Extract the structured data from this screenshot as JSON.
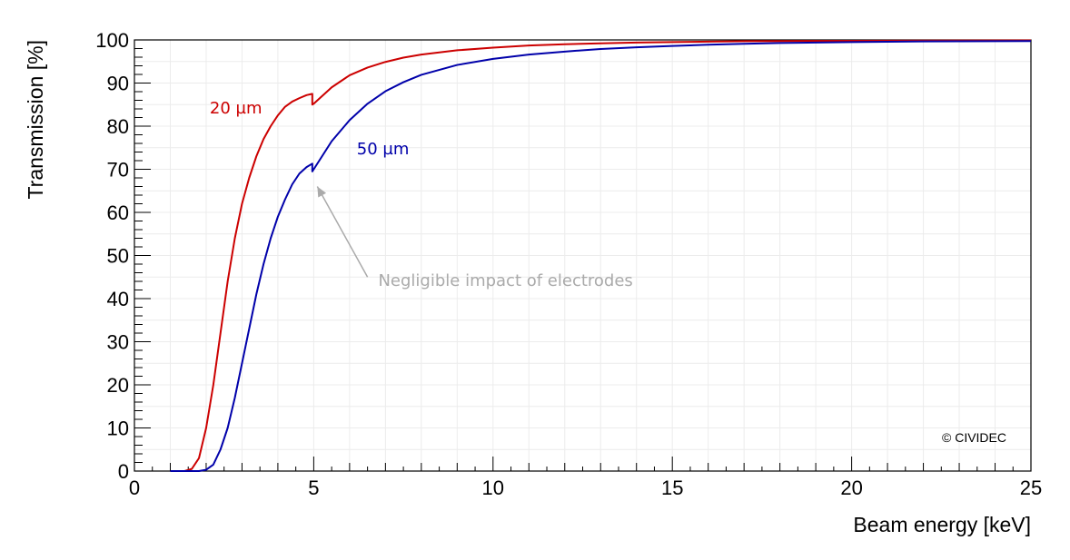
{
  "chart_data": {
    "type": "line",
    "xlabel": "Beam energy [keV]",
    "ylabel": "Transmission [%]",
    "xlim": [
      0,
      25
    ],
    "ylim": [
      0,
      100
    ],
    "x_ticks": [
      "0",
      "5",
      "10",
      "15",
      "20",
      "25"
    ],
    "y_ticks": [
      "0",
      "10",
      "20",
      "30",
      "40",
      "50",
      "60",
      "70",
      "80",
      "90",
      "100"
    ],
    "grid": true,
    "log_x": false,
    "log_y": false,
    "series": [
      {
        "name": "20 µm",
        "color": "#cc0000",
        "x": [
          1.0,
          1.2,
          1.4,
          1.6,
          1.8,
          2.0,
          2.2,
          2.4,
          2.6,
          2.8,
          3.0,
          3.2,
          3.4,
          3.6,
          3.8,
          4.0,
          4.2,
          4.4,
          4.6,
          4.8,
          4.96,
          4.96,
          5.0,
          5.5,
          6.0,
          6.5,
          7.0,
          7.5,
          8.0,
          9.0,
          10.0,
          11.0,
          12.0,
          13.0,
          14.0,
          15.0,
          16.0,
          17.0,
          18.0,
          20.0,
          22.0,
          25.0
        ],
        "y": [
          0,
          0,
          0,
          0.5,
          3,
          10,
          20,
          32,
          44,
          54,
          62,
          68,
          73,
          77,
          80,
          82.5,
          84.5,
          85.7,
          86.5,
          87.2,
          87.5,
          85,
          85.2,
          89,
          91.8,
          93.6,
          94.9,
          95.9,
          96.6,
          97.6,
          98.2,
          98.7,
          99.0,
          99.2,
          99.4,
          99.5,
          99.6,
          99.7,
          99.75,
          99.8,
          99.85,
          99.9
        ]
      },
      {
        "name": "50 µm",
        "color": "#0000aa",
        "x": [
          1.0,
          1.5,
          1.8,
          2.0,
          2.2,
          2.4,
          2.6,
          2.8,
          3.0,
          3.2,
          3.4,
          3.6,
          3.8,
          4.0,
          4.2,
          4.4,
          4.6,
          4.8,
          4.96,
          4.96,
          5.0,
          5.5,
          6.0,
          6.5,
          7.0,
          7.5,
          8.0,
          9.0,
          10.0,
          11.0,
          12.0,
          13.0,
          14.0,
          15.0,
          16.0,
          17.0,
          18.0,
          20.0,
          22.0,
          25.0
        ],
        "y": [
          0,
          0,
          0,
          0.3,
          1.5,
          5,
          10,
          17,
          25,
          33,
          41,
          48,
          54,
          59,
          63,
          66.5,
          69,
          70.5,
          71.3,
          69.5,
          70,
          76.5,
          81.4,
          85.2,
          88.1,
          90.2,
          91.9,
          94.2,
          95.6,
          96.6,
          97.3,
          97.9,
          98.3,
          98.6,
          98.9,
          99.1,
          99.3,
          99.5,
          99.65,
          99.75
        ]
      }
    ],
    "series_labels": [
      {
        "text": "20 µm",
        "x": 2.1,
        "y": 83,
        "color": "#cc0000"
      },
      {
        "text": "50 µm",
        "x": 6.2,
        "y": 73.5,
        "color": "#0000aa"
      }
    ],
    "annotations": [
      {
        "text": "Negligible impact of electrodes",
        "arrow_from": [
          6.5,
          45
        ],
        "arrow_to": [
          5.1,
          66
        ],
        "text_x": 6.8,
        "text_y": 43,
        "color": "#aaaaaa"
      }
    ],
    "watermark": "© CIVIDEC"
  }
}
